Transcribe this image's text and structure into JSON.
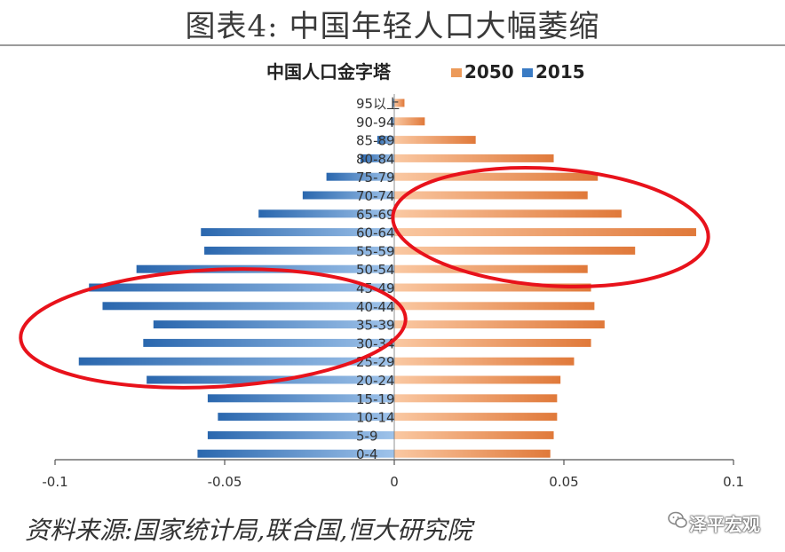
{
  "header": {
    "title": "图表4:   中国年轻人口大幅萎缩"
  },
  "chart_data": {
    "type": "bar",
    "orientation": "horizontal",
    "title": "中国人口金字塔",
    "legend_position": "top-right",
    "categories": [
      "95以上",
      "90-94",
      "85-89",
      "80-84",
      "75-79",
      "70-74",
      "65-69",
      "60-64",
      "55-59",
      "50-54",
      "45-49",
      "40-44",
      "35-39",
      "30-34",
      "25-29",
      "20-24",
      "15-19",
      "10-14",
      "5-9",
      "0-4"
    ],
    "series": [
      {
        "name": "2050",
        "color": "#ec9a5a",
        "values": [
          0.003,
          0.009,
          0.024,
          0.047,
          0.06,
          0.057,
          0.067,
          0.089,
          0.071,
          0.057,
          0.058,
          0.059,
          0.062,
          0.058,
          0.053,
          0.049,
          0.048,
          0.048,
          0.047,
          0.046
        ]
      },
      {
        "name": "2015",
        "color": "#3a7bc4",
        "values": [
          -0.0005,
          -0.001,
          -0.005,
          -0.01,
          -0.02,
          -0.027,
          -0.04,
          -0.057,
          -0.056,
          -0.076,
          -0.09,
          -0.086,
          -0.071,
          -0.074,
          -0.093,
          -0.073,
          -0.055,
          -0.052,
          -0.055,
          -0.058
        ]
      }
    ],
    "x_ticks": [
      -0.1,
      -0.05,
      0,
      0.05,
      0.1
    ],
    "x_tick_labels": [
      "-0.1",
      "-0.05",
      "0",
      "0.05",
      "0.1"
    ],
    "xlim": [
      -0.1,
      0.1
    ],
    "grid": false,
    "annotations": [
      "red ellipse around ages 50-74 of 2050 series",
      "red ellipse around ages 20-49 of 2015 series"
    ]
  },
  "footer": {
    "source": "资料来源:国家统计局,联合国,恒大研究院",
    "watermark": "泽平宏观"
  }
}
